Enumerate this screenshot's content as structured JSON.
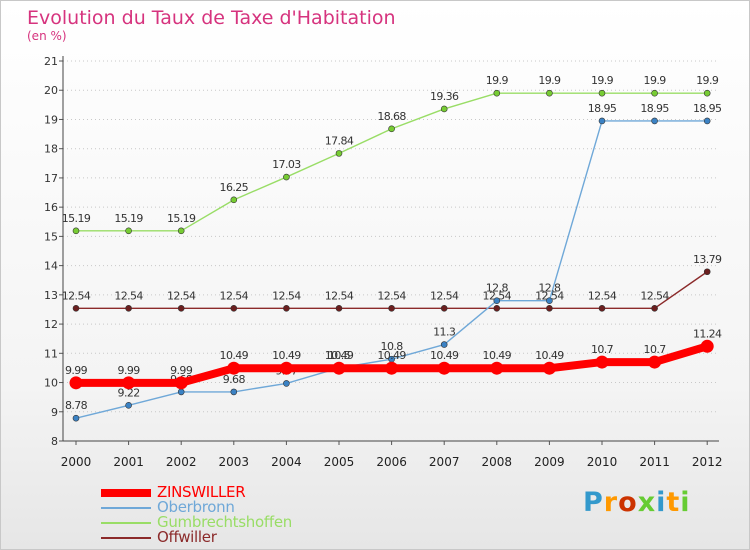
{
  "header": {
    "title": "Evolution du Taux de Taxe d'Habitation",
    "subtitle": "(en %)"
  },
  "logo": {
    "text": "Proxiti",
    "colors": [
      "#3399cc",
      "#ff9900",
      "#cc3300",
      "#66cc33",
      "#3399cc",
      "#ff9900",
      "#66cc33"
    ]
  },
  "chart_data": {
    "type": "line",
    "title": "Evolution du Taux de Taxe d'Habitation",
    "subtitle": "(en %)",
    "xlabel": "",
    "ylabel": "(en %)",
    "x": [
      "2000",
      "2001",
      "2002",
      "2003",
      "2004",
      "2005",
      "2006",
      "2007",
      "2008",
      "2009",
      "2010",
      "2011",
      "2012"
    ],
    "ylim": [
      8,
      21
    ],
    "yticks": [
      "8",
      "9",
      "10",
      "11",
      "12",
      "13",
      "14",
      "15",
      "16",
      "17",
      "18",
      "19",
      "20",
      "21"
    ],
    "grid": "horizontal dotted",
    "legend_position": "bottom-left",
    "series": [
      {
        "name": "ZINSWILLER",
        "color": "#ff0000",
        "point_color": "#ff0000",
        "thick": true,
        "values": [
          9.99,
          9.99,
          9.99,
          10.49,
          10.49,
          10.49,
          10.49,
          10.49,
          10.49,
          10.49,
          10.7,
          10.7,
          11.24
        ],
        "labels": [
          "9.99",
          "9.99",
          "9.99",
          "10.49",
          "10.49",
          "10.49",
          "10.49",
          "10.49",
          "10.49",
          "10.49",
          "10.7",
          "10.7",
          "11.24"
        ]
      },
      {
        "name": "Oberbronn",
        "color": "#6fa8d8",
        "point_color": "#3b82c4",
        "thick": false,
        "values": [
          8.78,
          9.22,
          9.68,
          9.68,
          9.97,
          10.5,
          10.8,
          11.3,
          12.8,
          12.8,
          18.95,
          18.95,
          18.95
        ],
        "labels": [
          "8.78",
          "9.22",
          "9.68",
          "9.68",
          "9.97",
          "10.5",
          "10.8",
          "11.3",
          "12.8",
          "12.8",
          "18.95",
          "18.95",
          "18.95"
        ]
      },
      {
        "name": "Gumbrechtshoffen",
        "color": "#99dd66",
        "point_color": "#77cc33",
        "thick": false,
        "values": [
          15.19,
          15.19,
          15.19,
          16.25,
          17.03,
          17.84,
          18.68,
          19.36,
          19.9,
          19.9,
          19.9,
          19.9,
          19.9
        ],
        "labels": [
          "15.19",
          "15.19",
          "15.19",
          "16.25",
          "17.03",
          "17.84",
          "18.68",
          "19.36",
          "19.9",
          "19.9",
          "19.9",
          "19.9",
          "19.9"
        ]
      },
      {
        "name": "Offwiller",
        "color": "#8b2a2a",
        "point_color": "#6b1f1f",
        "thick": false,
        "values": [
          12.54,
          12.54,
          12.54,
          12.54,
          12.54,
          12.54,
          12.54,
          12.54,
          12.54,
          12.54,
          12.54,
          12.54,
          13.79
        ],
        "labels": [
          "12.54",
          "12.54",
          "12.54",
          "12.54",
          "12.54",
          "12.54",
          "12.54",
          "12.54",
          "12.54",
          "12.54",
          "12.54",
          "12.54",
          "13.79"
        ]
      }
    ]
  }
}
